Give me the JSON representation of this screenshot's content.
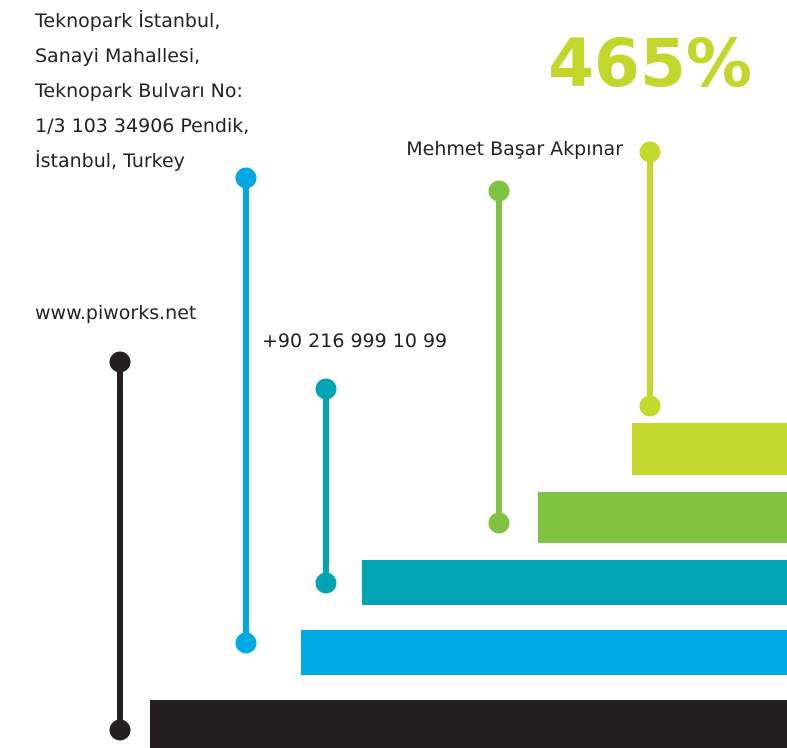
{
  "address": {
    "lines": [
      "Teknopark İstanbul,",
      "Sanayi Mahallesi,",
      "Teknopark Bulvarı No:",
      "1/3 103 34906 Pendik,",
      "İstanbul, Turkey"
    ]
  },
  "highlight": "465%",
  "website": "www.piworks.net",
  "phone": "+90 216 999 10 99",
  "person": "Mehmet Başar Akpınar"
}
